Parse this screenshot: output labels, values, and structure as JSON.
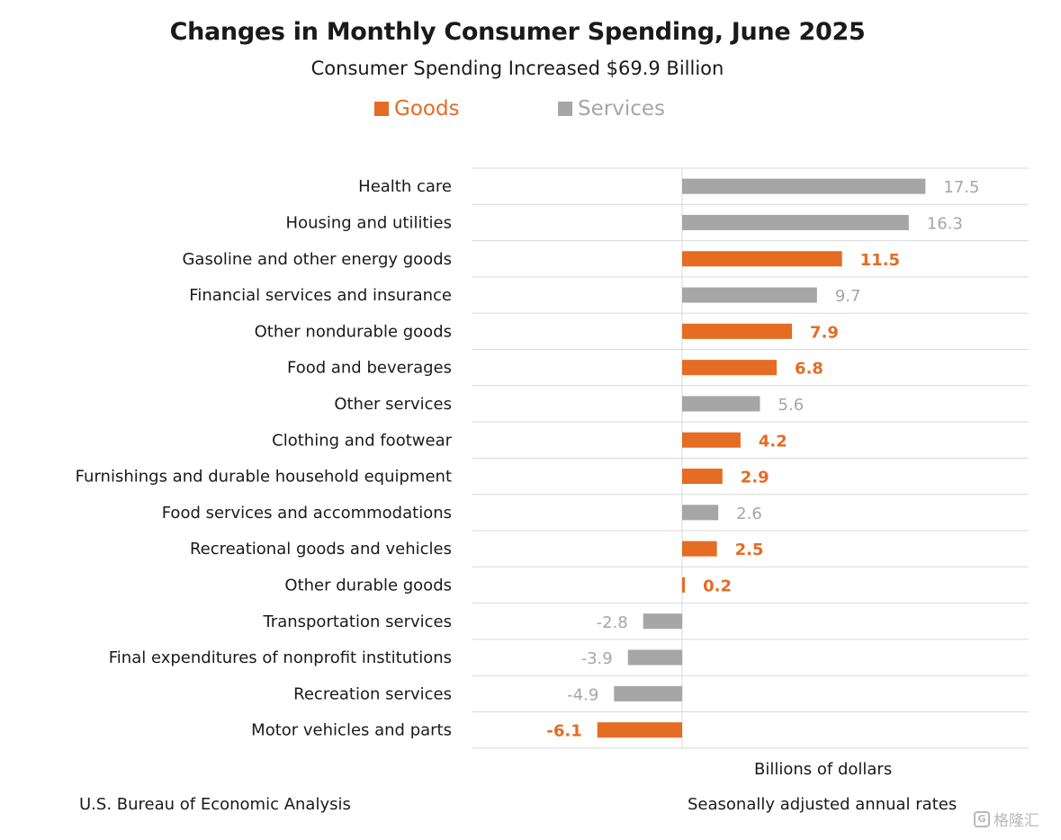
{
  "chart_data": {
    "type": "bar",
    "orientation": "horizontal",
    "title": "Changes in Monthly Consumer Spending, June 2025",
    "subtitle": "Consumer Spending Increased $69.9 Billion",
    "xlabel": "Billions of dollars",
    "ylabel": "",
    "legend": [
      {
        "name": "Goods",
        "color": "#E46C23"
      },
      {
        "name": "Services",
        "color": "#A6A6A6"
      }
    ],
    "legend_position": "top-center",
    "grid": true,
    "xlim": [
      -10,
      21
    ],
    "categories": [
      "Health care",
      "Housing and utilities",
      "Gasoline and other energy goods",
      "Financial services and insurance",
      "Other nondurable goods",
      "Food and beverages",
      "Other services",
      "Clothing and footwear",
      "Furnishings and durable household equipment",
      "Food services and accommodations",
      "Recreational goods and vehicles",
      "Other durable goods",
      "Transportation services",
      "Final expenditures of nonprofit institutions",
      "Recreation services",
      "Motor vehicles and parts"
    ],
    "values": [
      17.5,
      16.3,
      11.5,
      9.7,
      7.9,
      6.8,
      5.6,
      4.2,
      2.9,
      2.6,
      2.5,
      0.2,
      -2.8,
      -3.9,
      -4.9,
      -6.1
    ],
    "value_labels": [
      "17.5",
      "16.3",
      "11.5",
      "9.7",
      "7.9",
      "6.8",
      "5.6",
      "4.2",
      "2.9",
      "2.6",
      "2.5",
      "0.2",
      "-2.8",
      "-3.9",
      "-4.9",
      "-6.1"
    ],
    "series_by_category": [
      "Services",
      "Services",
      "Goods",
      "Services",
      "Goods",
      "Goods",
      "Services",
      "Goods",
      "Goods",
      "Services",
      "Goods",
      "Goods",
      "Services",
      "Services",
      "Services",
      "Goods"
    ]
  },
  "footer": {
    "source": "U.S. Bureau of Economic Analysis",
    "note": "Seasonally adjusted annual rates"
  },
  "watermark": {
    "text": "格隆汇",
    "icon": "G"
  }
}
